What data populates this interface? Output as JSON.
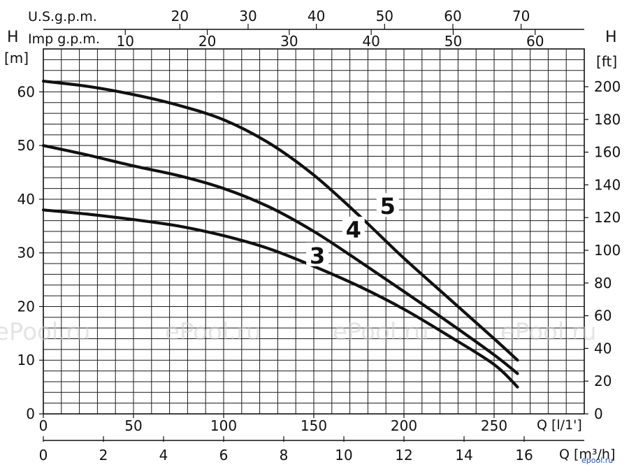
{
  "chart_data": {
    "type": "line",
    "x_unit_label": "Q [l/1']",
    "x_alt_label": "Q [m³/h]",
    "top_axis_us_label": "U.S.g.p.m.",
    "top_axis_imp_label": "Imp g.p.m.",
    "y_left_title": "H",
    "y_left_unit": "[m]",
    "y_right_title": "H",
    "y_right_unit": "[ft]",
    "xlim": [
      0,
      300
    ],
    "ylim": [
      0,
      68
    ],
    "x_ticks": [
      0,
      50,
      100,
      150,
      200,
      250
    ],
    "x_alt_ticks": [
      0,
      2,
      4,
      6,
      8,
      10,
      12,
      14,
      16
    ],
    "us_gpm_ticks": [
      20,
      30,
      40,
      50,
      60,
      70
    ],
    "imp_gpm_ticks": [
      10,
      20,
      30,
      40,
      50,
      60
    ],
    "y_left_ticks": [
      0,
      10,
      20,
      30,
      40,
      50,
      60
    ],
    "y_right_ticks": [
      0,
      20,
      40,
      60,
      80,
      100,
      120,
      140,
      160,
      180,
      200
    ],
    "grid": true,
    "series": [
      {
        "name": "5",
        "x": [
          0,
          25,
          50,
          75,
          100,
          125,
          150,
          175,
          200,
          225,
          250,
          263
        ],
        "y": [
          62,
          61,
          59.5,
          57.5,
          54.8,
          50.5,
          44.5,
          37,
          29,
          21.5,
          14,
          10
        ]
      },
      {
        "name": "4",
        "x": [
          0,
          25,
          50,
          75,
          100,
          125,
          150,
          175,
          200,
          225,
          250,
          263
        ],
        "y": [
          50,
          48.2,
          46.2,
          44.4,
          42,
          38.6,
          34,
          28.5,
          22.8,
          17,
          11,
          7.5
        ]
      },
      {
        "name": "3",
        "x": [
          0,
          25,
          50,
          75,
          100,
          125,
          150,
          175,
          200,
          225,
          250,
          263
        ],
        "y": [
          38,
          37.2,
          36.2,
          35,
          33.2,
          30.8,
          27.5,
          23.8,
          19.5,
          14.5,
          9.2,
          5
        ]
      }
    ],
    "curve_labels": [
      "5",
      "4",
      "3"
    ]
  },
  "watermark": "ePool.ru",
  "corner_mark": "epool.ru"
}
